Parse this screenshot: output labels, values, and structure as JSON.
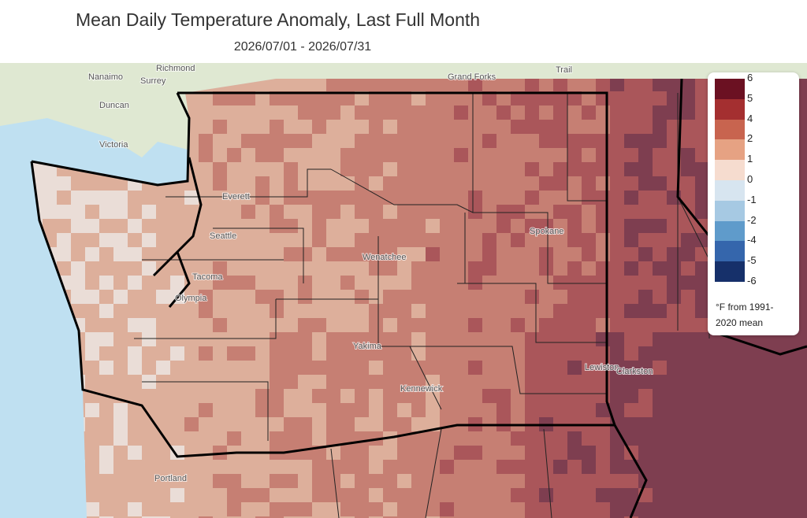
{
  "header": {
    "title": "Mean Daily Temperature Anomaly, Last Full Month",
    "subtitle": "2026/07/01 - 2026/07/31"
  },
  "legend": {
    "labels": [
      "6",
      "5",
      "4",
      "2",
      "1",
      "0",
      "-1",
      "-2",
      "-4",
      "-5",
      "-6"
    ],
    "colors": [
      "#6b1122",
      "#a42f30",
      "#c8644f",
      "#e6a283",
      "#f6dccf",
      "#d7e5f0",
      "#a6c9e3",
      "#5f9bcb",
      "#3566ac",
      "#16306a"
    ],
    "note": "°F from 1991-2020 mean"
  },
  "places": [
    "Nanaimo",
    "Richmond",
    "Surrey",
    "Duncan",
    "Victoria",
    "Grand Forks",
    "Trail",
    "Everett",
    "Seattle",
    "Tacoma",
    "Olympia",
    "Wenatchee",
    "Spokane",
    "Yakima",
    "Kennewick",
    "Lewiston",
    "Clarkston",
    "Portland"
  ]
}
